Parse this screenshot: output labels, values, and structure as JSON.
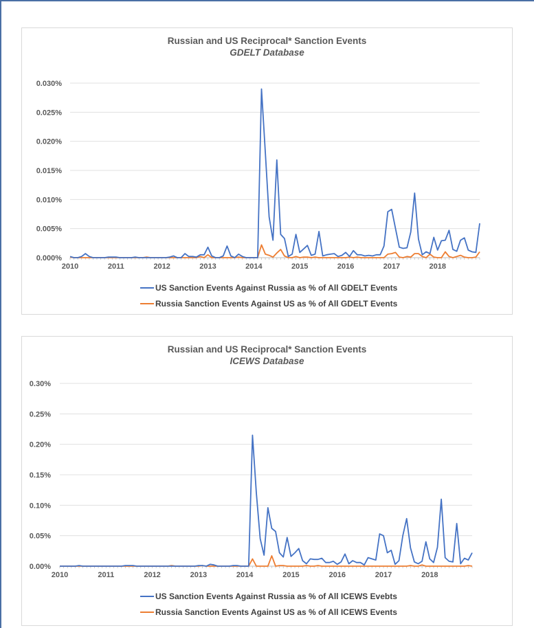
{
  "colors": {
    "us": "#4472c4",
    "russia": "#ed7d31",
    "grid": "#e0e0e0",
    "frame": "#4a6fa5"
  },
  "chart_data": [
    {
      "type": "line",
      "title": "Russian and US Reciprocal* Sanction Events",
      "subtitle": "GDELT Database",
      "xlabel": "",
      "ylabel": "",
      "x_start": "2010-01",
      "frequency": "monthly",
      "x_ticks": [
        "2010",
        "2011",
        "2012",
        "2013",
        "2014",
        "2015",
        "2016",
        "2017",
        "2018"
      ],
      "y_ticks": [
        "0.000%",
        "0.005%",
        "0.010%",
        "0.015%",
        "0.020%",
        "0.025%",
        "0.030%"
      ],
      "ylim": [
        0,
        0.03
      ],
      "legend_position": "bottom",
      "series": [
        {
          "name": "US Sanction Events Against Russia as % of All GDELT Events",
          "color": "#4472c4",
          "values": [
            0.0002,
            0,
            0,
            0.0002,
            0.0007,
            0.0002,
            0,
            0,
            0,
            0,
            0.0001,
            0.0001,
            0.0001,
            0,
            0,
            0,
            0,
            0.0001,
            0,
            0,
            0,
            0,
            0,
            0,
            0,
            0,
            0.0001,
            0.0003,
            0,
            0,
            0.0007,
            0.0002,
            0.0002,
            0.0001,
            0.0005,
            0.0005,
            0.0018,
            0.0003,
            0,
            0,
            0.0003,
            0.002,
            0.0003,
            0,
            0.0006,
            0.0002,
            0,
            0,
            0,
            0,
            0.029,
            0.018,
            0.007,
            0.003,
            0.0168,
            0.004,
            0.0033,
            0.0002,
            0.0006,
            0.004,
            0.0009,
            0.0015,
            0.0021,
            0.0004,
            0.0006,
            0.0045,
            0.0003,
            0.0005,
            0.0006,
            0.0007,
            0.0002,
            0.0004,
            0.0009,
            0.0002,
            0.0012,
            0.0005,
            0.0005,
            0.0003,
            0.0004,
            0.0003,
            0.0005,
            0.0005,
            0.002,
            0.0079,
            0.0083,
            0.005,
            0.0018,
            0.0016,
            0.0017,
            0.0044,
            0.0111,
            0.0032,
            0.0005,
            0.001,
            0.0007,
            0.0035,
            0.0013,
            0.0029,
            0.003,
            0.0047,
            0.0014,
            0.0011,
            0.003,
            0.0034,
            0.0013,
            0.001,
            0.0009,
            0.0059
          ]
        },
        {
          "name": "Russia Sanction Events Against US as % of All GDELT Events",
          "color": "#ed7d31",
          "values": [
            0.0001,
            0,
            0,
            0,
            0,
            0,
            0,
            0,
            0,
            0,
            0,
            0,
            0,
            0,
            0,
            0,
            0,
            0,
            0,
            0,
            0.0001,
            0,
            0,
            0,
            0,
            0,
            0,
            0,
            0,
            0,
            0,
            0,
            0,
            0,
            0.0002,
            0,
            0.0005,
            0,
            0,
            0,
            0,
            0,
            0,
            0,
            0.0001,
            0,
            0,
            0,
            0,
            0,
            0.0022,
            0.0006,
            0.0004,
            0.0001,
            0.0008,
            0.0014,
            0.0003,
            0,
            0,
            0.0002,
            0,
            0.0001,
            0.0001,
            0,
            0.0001,
            0,
            0,
            0,
            0,
            0,
            0,
            0,
            0,
            0.0001,
            0,
            0.0001,
            0,
            0,
            0,
            0,
            0,
            0,
            0,
            0.0006,
            0.0007,
            0.0009,
            0.0001,
            0,
            0.0002,
            0.0001,
            0.0007,
            0.0007,
            0.0002,
            0,
            0.0006,
            0.0001,
            0,
            0,
            0.001,
            0.0002,
            0,
            0.0002,
            0.0004,
            0.0001,
            0,
            0,
            0.0001,
            0.001
          ]
        }
      ]
    },
    {
      "type": "line",
      "title": "Russian and US Reciprocal* Sanction Events",
      "subtitle": "ICEWS Database",
      "xlabel": "",
      "ylabel": "",
      "x_start": "2010-01",
      "frequency": "monthly",
      "x_ticks": [
        "2010",
        "2011",
        "2012",
        "2013",
        "2014",
        "2015",
        "2016",
        "2017",
        "2018"
      ],
      "y_ticks": [
        "0.00%",
        "0.05%",
        "0.10%",
        "0.15%",
        "0.20%",
        "0.25%",
        "0.30%"
      ],
      "ylim": [
        0,
        0.3
      ],
      "legend_position": "bottom",
      "series": [
        {
          "name": "US Sanction Events Against Russia as % of All ICEWS Evebts",
          "color": "#4472c4",
          "values": [
            0,
            0,
            0,
            0,
            0,
            0.001,
            0,
            0,
            0,
            0,
            0,
            0,
            0,
            0,
            0,
            0,
            0,
            0.001,
            0.001,
            0.001,
            0,
            0,
            0,
            0,
            0,
            0,
            0,
            0,
            0,
            0,
            0,
            0,
            0,
            0,
            0,
            0,
            0.001,
            0.001,
            0,
            0.003,
            0.002,
            0,
            0,
            0,
            0,
            0.001,
            0.001,
            0,
            0,
            0,
            0.215,
            0.12,
            0.045,
            0.018,
            0.096,
            0.062,
            0.057,
            0.022,
            0.015,
            0.047,
            0.016,
            0.022,
            0.029,
            0.009,
            0.004,
            0.012,
            0.011,
            0.011,
            0.013,
            0.006,
            0.006,
            0.008,
            0.003,
            0.007,
            0.02,
            0.004,
            0.009,
            0.006,
            0.006,
            0.002,
            0.014,
            0.012,
            0.01,
            0.053,
            0.05,
            0.022,
            0.026,
            0.003,
            0.009,
            0.05,
            0.078,
            0.03,
            0.007,
            0.004,
            0.008,
            0.04,
            0.012,
            0.006,
            0.031,
            0.11,
            0.014,
            0.008,
            0.007,
            0.07,
            0.004,
            0.013,
            0.01,
            0.022
          ]
        },
        {
          "name": "Russia Sanction Events Against US as % of All ICEWS Events",
          "color": "#ed7d31",
          "values": [
            0,
            0,
            0,
            0,
            0,
            0,
            0,
            0,
            0,
            0,
            0,
            0,
            0,
            0,
            0,
            0,
            0,
            0,
            0,
            0,
            0,
            0,
            0,
            0,
            0,
            0,
            0,
            0,
            0,
            0.001,
            0,
            0,
            0,
            0,
            0,
            0,
            0,
            0.001,
            0,
            0,
            0,
            0,
            0,
            0,
            0,
            0,
            0,
            0,
            0,
            0,
            0.012,
            0,
            0,
            0,
            0,
            0.017,
            0,
            0.001,
            0.001,
            0,
            0,
            0,
            0,
            0,
            0.001,
            0,
            0,
            0.001,
            0,
            0,
            0,
            0,
            0,
            0,
            0,
            0,
            0,
            0,
            0,
            0,
            0,
            0,
            0,
            0,
            0,
            0,
            0,
            0,
            0,
            0,
            0,
            0.001,
            0,
            0,
            0.002,
            0,
            0,
            0,
            0,
            0,
            0,
            0,
            0,
            0,
            0,
            0,
            0.001,
            0
          ]
        }
      ]
    }
  ]
}
